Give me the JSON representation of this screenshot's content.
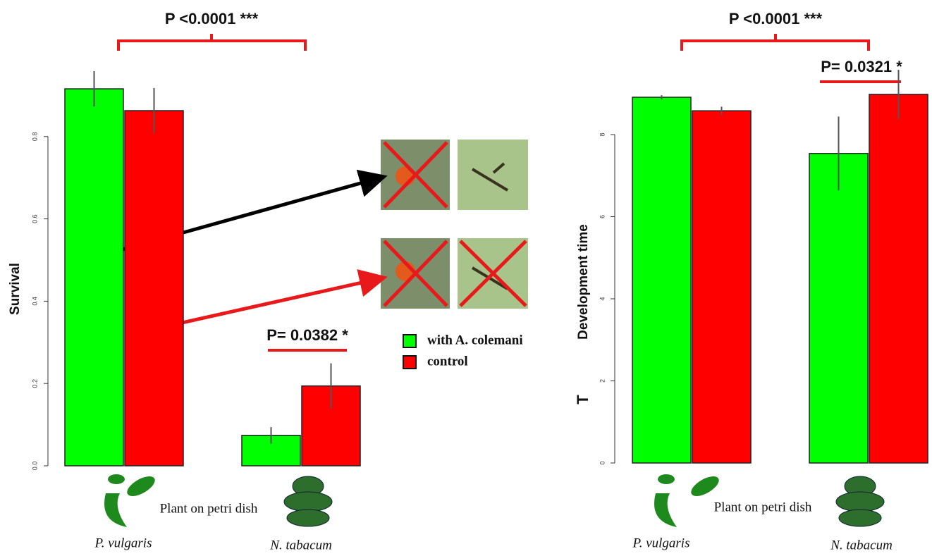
{
  "chart_data": [
    {
      "type": "bar",
      "y_label": "Survival",
      "x_label": "Plant on petri dish",
      "categories": [
        "P. vulgaris",
        "N. tabacum"
      ],
      "series": [
        {
          "name": "with A. colemani",
          "color": "#00ff00",
          "values": [
            0.916,
            0.074
          ],
          "errors": [
            0.043,
            0.02
          ]
        },
        {
          "name": "control",
          "color": "#ff0000",
          "values": [
            0.863,
            0.194
          ],
          "errors": [
            0.055,
            0.055
          ]
        }
      ],
      "ylim": [
        0,
        1
      ],
      "yticks": [
        {
          "value": 0,
          "label": "0.0"
        },
        0.2,
        0.4,
        0.6,
        0.8
      ],
      "annotations": [
        "P <0.0001 ***",
        "P= 0.0382 *"
      ]
    },
    {
      "type": "bar",
      "y_label": "Development time",
      "x_label": "Plant on petri dish",
      "categories": [
        "P. vulgaris",
        "N. tabacum"
      ],
      "series": [
        {
          "color": "#00ff00",
          "values": [
            8.91,
            7.54
          ],
          "errors": [
            0.05,
            0.9
          ]
        },
        {
          "color": "#ff0000",
          "values": [
            8.58,
            8.98
          ],
          "errors": [
            0.1,
            0.6
          ]
        }
      ],
      "ylim": [
        0,
        10
      ],
      "yticks": [
        0,
        2,
        4,
        6,
        8
      ],
      "annotations": [
        "P <0.0001 ***",
        "P= 0.0321 *",
        "T"
      ]
    }
  ]
}
